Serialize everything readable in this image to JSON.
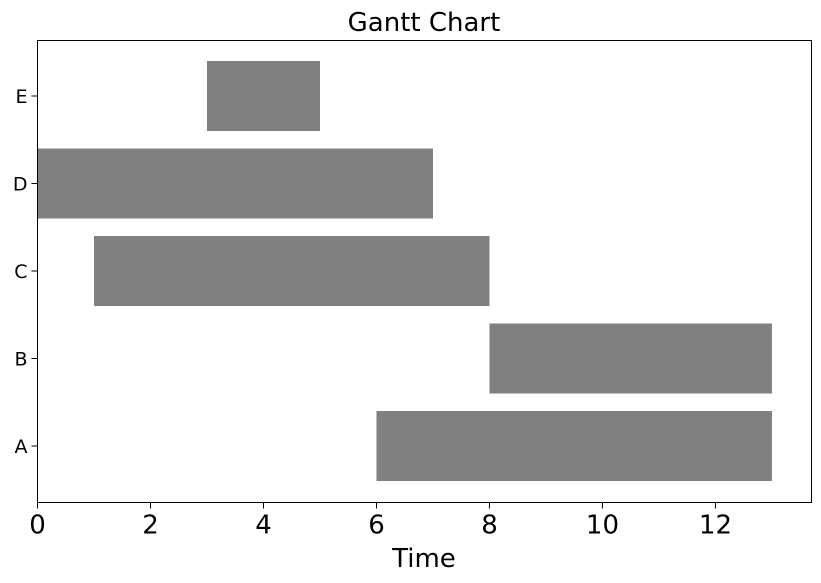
{
  "chart_data": {
    "type": "bar",
    "orientation": "horizontal",
    "title": "Gantt Chart",
    "xlabel": "Time",
    "ylabel": "",
    "xlim": [
      0,
      13.7
    ],
    "xticks": [
      0,
      2,
      4,
      6,
      8,
      10,
      12
    ],
    "categories": [
      "A",
      "B",
      "C",
      "D",
      "E"
    ],
    "tasks": [
      {
        "name": "A",
        "start": 6,
        "end": 13
      },
      {
        "name": "B",
        "start": 8,
        "end": 13
      },
      {
        "name": "C",
        "start": 1,
        "end": 8
      },
      {
        "name": "D",
        "start": 0,
        "end": 7
      },
      {
        "name": "E",
        "start": 3,
        "end": 5
      }
    ],
    "bar_color": "#808080",
    "grid": false,
    "legend": "none"
  }
}
